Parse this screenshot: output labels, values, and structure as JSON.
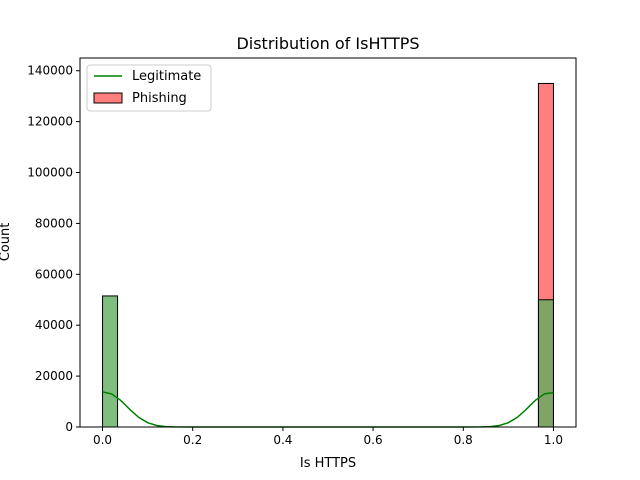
{
  "chart_data": {
    "type": "bar",
    "title": "Distribution of IsHTTPS",
    "xlabel": "Is HTTPS",
    "ylabel": "Count",
    "xlim": [
      -0.05,
      1.05
    ],
    "ylim": [
      0,
      145000
    ],
    "x_ticks": [
      0.0,
      0.2,
      0.4,
      0.6,
      0.8,
      1.0
    ],
    "x_tick_labels": [
      "0.0",
      "0.2",
      "0.4",
      "0.6",
      "0.8",
      "1.0"
    ],
    "y_ticks": [
      0,
      20000,
      40000,
      60000,
      80000,
      100000,
      120000,
      140000
    ],
    "y_tick_labels": [
      "0",
      "20000",
      "40000",
      "60000",
      "80000",
      "100000",
      "120000",
      "140000"
    ],
    "grid": false,
    "legend_position": "top-left",
    "legend": [
      {
        "label": "Legitimate",
        "kind": "line",
        "color": "#008000"
      },
      {
        "label": "Phishing",
        "kind": "patch",
        "color": "#ff7f7f"
      }
    ],
    "series": [
      {
        "name": "Phishing",
        "color": "#ff7f7f",
        "bins": [
          {
            "x0": 0.0,
            "x1": 0.0333,
            "count": 0
          },
          {
            "x0": 0.9667,
            "x1": 1.0,
            "count": 135000
          }
        ]
      },
      {
        "name": "Legitimate",
        "color": "#5fae5f",
        "bins": [
          {
            "x0": 0.0,
            "x1": 0.0333,
            "count": 51500
          },
          {
            "x0": 0.9667,
            "x1": 1.0,
            "count": 50000
          }
        ],
        "kde": {
          "color": "#008000",
          "points": [
            [
              0.0,
              13800
            ],
            [
              0.02,
              13000
            ],
            [
              0.04,
              10500
            ],
            [
              0.06,
              7000
            ],
            [
              0.08,
              3800
            ],
            [
              0.1,
              1700
            ],
            [
              0.12,
              600
            ],
            [
              0.14,
              150
            ],
            [
              0.16,
              30
            ],
            [
              0.2,
              0
            ],
            [
              0.8,
              0
            ],
            [
              0.84,
              30
            ],
            [
              0.86,
              150
            ],
            [
              0.88,
              600
            ],
            [
              0.9,
              1700
            ],
            [
              0.92,
              3800
            ],
            [
              0.94,
              7000
            ],
            [
              0.96,
              10500
            ],
            [
              0.98,
              13000
            ],
            [
              1.0,
              13500
            ]
          ]
        }
      }
    ]
  }
}
